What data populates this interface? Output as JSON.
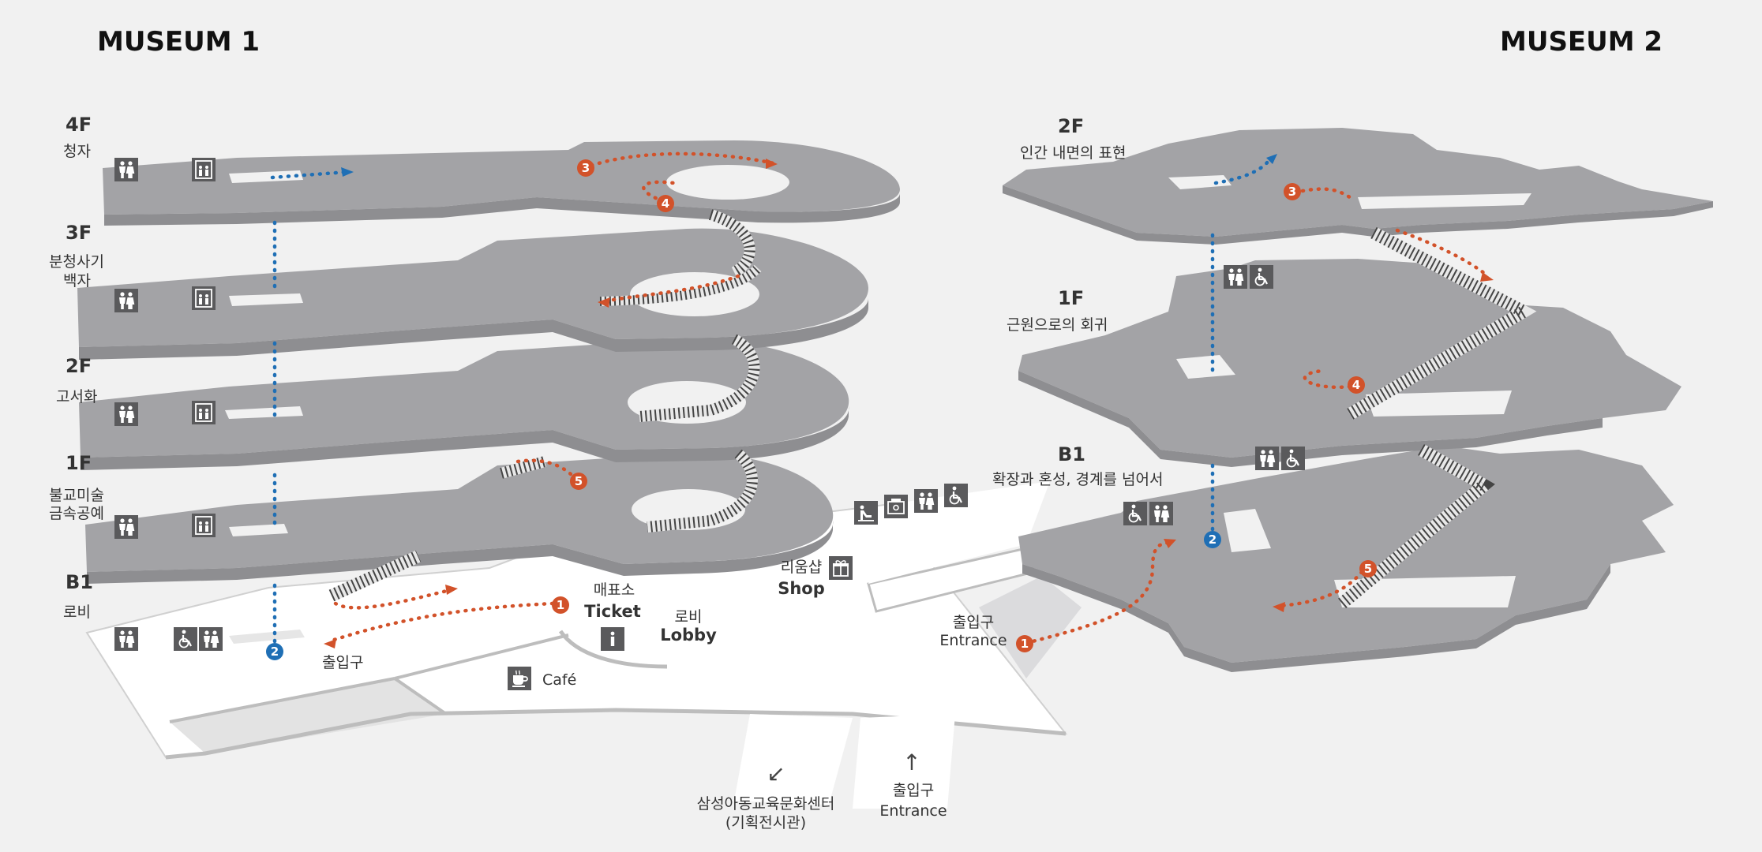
{
  "colors": {
    "background": "#f1f1f1",
    "floor": "#a3a3a6",
    "floor_top": "#b2b2b5",
    "floor_shadow": "#8e8e91",
    "ground": "#ffffff",
    "route_orange": "#d2522a",
    "route_blue": "#1f6fb5",
    "icon_tile": "#5a5a5c",
    "stair": "#eeeeee"
  },
  "museum1": {
    "title": "MUSEUM 1",
    "floors": [
      {
        "code": "4F",
        "name_lines": [
          "청자"
        ]
      },
      {
        "code": "3F",
        "name_lines": [
          "분청사기",
          "백자"
        ]
      },
      {
        "code": "2F",
        "name_lines": [
          "고서화"
        ]
      },
      {
        "code": "1F",
        "name_lines": [
          "불교미술",
          "금속공예"
        ]
      },
      {
        "code": "B1",
        "name_lines": [
          "로비"
        ]
      }
    ],
    "places": {
      "exit_label": "출입구",
      "ticket_kr": "매표소",
      "ticket_en": "Ticket",
      "lobby_kr": "로비",
      "lobby_en": "Lobby",
      "cafe": "Café",
      "shop_kr": "리움샵",
      "shop_en": "Shop"
    },
    "markers": [
      "1",
      "2",
      "3",
      "4",
      "5"
    ]
  },
  "museum2": {
    "title": "MUSEUM 2",
    "floors": [
      {
        "code": "2F",
        "name_lines": [
          "인간 내면의 표현"
        ]
      },
      {
        "code": "1F",
        "name_lines": [
          "근원으로의 회귀"
        ]
      },
      {
        "code": "B1",
        "name_lines": [
          "확장과 혼성, 경계를 넘어서"
        ]
      }
    ],
    "places": {
      "entrance_kr": "출입구",
      "entrance_en": "Entrance"
    },
    "markers": [
      "1",
      "2",
      "3",
      "4",
      "5"
    ]
  },
  "outside": {
    "education_center_lines": [
      "삼성아동교육문화센터",
      "(기획전시관)"
    ],
    "entrance_kr": "출입구",
    "entrance_en": "Entrance"
  },
  "icons": {
    "restroom": "restroom-icon",
    "elevator": "elevator-icon",
    "accessible": "wheelchair-icon",
    "info": "info-icon",
    "cafe": "coffee-cup-icon",
    "gift": "gift-icon",
    "baby": "baby-change-icon",
    "locker": "locker-icon"
  }
}
